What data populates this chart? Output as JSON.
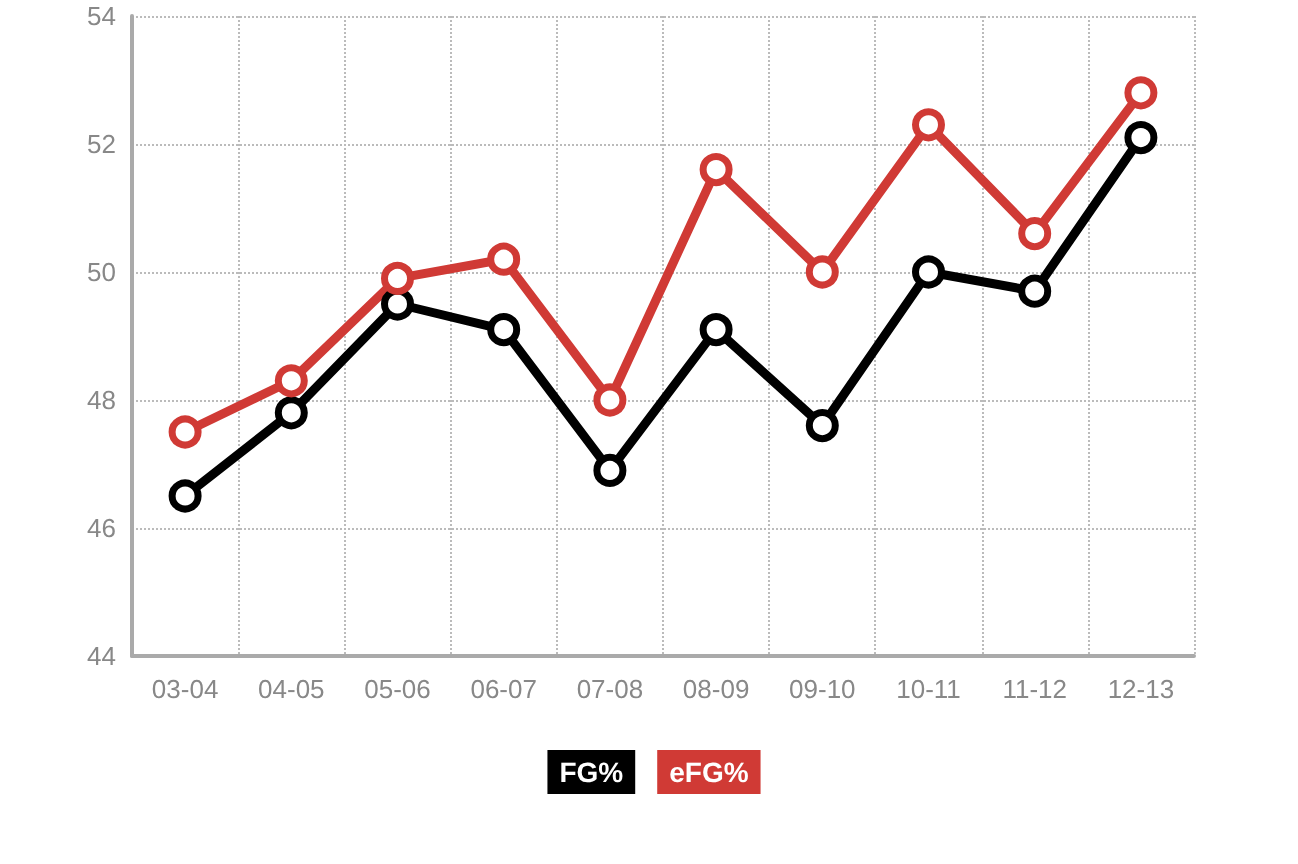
{
  "chart_data": {
    "type": "line",
    "categories": [
      "03-04",
      "04-05",
      "05-06",
      "06-07",
      "07-08",
      "08-09",
      "09-10",
      "10-11",
      "11-12",
      "12-13"
    ],
    "series": [
      {
        "name": "FG%",
        "color": "#000000",
        "values": [
          46.5,
          47.8,
          49.5,
          49.1,
          46.9,
          49.1,
          47.6,
          50.0,
          49.7,
          52.1
        ]
      },
      {
        "name": "eFG%",
        "color": "#d03a35",
        "values": [
          47.5,
          48.3,
          49.9,
          50.2,
          48.0,
          51.6,
          50.0,
          52.3,
          50.6,
          52.8
        ]
      }
    ],
    "ylim": [
      44,
      54
    ],
    "yticks": [
      44,
      46,
      48,
      50,
      52,
      54
    ],
    "grid": true,
    "legend": "bottom",
    "marker": "circle",
    "line_style": "solid"
  }
}
